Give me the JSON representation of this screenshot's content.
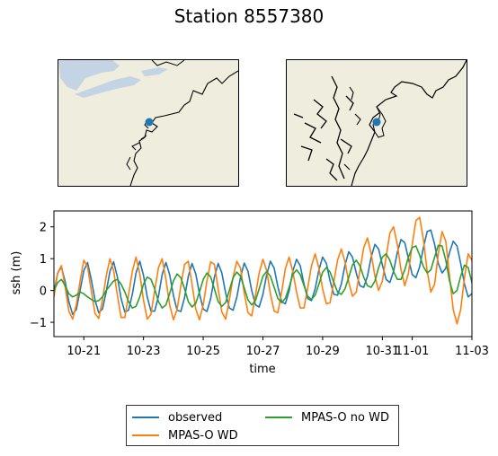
{
  "figure": {
    "title": "Station 8557380"
  },
  "maps": [
    {
      "name": "regional-map",
      "land_color": "#efedde",
      "water_color": "#c4d4e4",
      "station_color": "#1f77b4"
    },
    {
      "name": "local-map",
      "land_color": "#efedde",
      "station_color": "#1f77b4"
    }
  ],
  "chart_data": {
    "type": "line",
    "xlabel": "time",
    "ylabel": "ssh (m)",
    "xlim": [
      "10-20",
      "11-03"
    ],
    "ylim": [
      -1.45,
      2.5
    ],
    "x_ticks": [
      "10-21",
      "10-23",
      "10-25",
      "10-27",
      "10-29",
      "10-31",
      "11-01",
      "11-03"
    ],
    "y_ticks": [
      -1,
      0,
      1,
      2
    ],
    "grid": false,
    "legend_position": "bottom-center, outside",
    "x_step_hours": 3,
    "series": [
      {
        "name": "observed",
        "color": "#1f77b4",
        "values": [
          -0.05,
          0.55,
          0.74,
          0.28,
          -0.35,
          -0.75,
          -0.6,
          0.0,
          0.62,
          0.88,
          0.35,
          -0.3,
          -0.7,
          -0.58,
          -0.05,
          0.6,
          0.9,
          0.42,
          -0.25,
          -0.68,
          -0.62,
          -0.12,
          0.55,
          0.92,
          0.48,
          -0.2,
          -0.65,
          -0.65,
          -0.18,
          0.5,
          0.88,
          0.5,
          -0.15,
          -0.62,
          -0.66,
          -0.22,
          0.45,
          0.85,
          0.52,
          -0.1,
          -0.58,
          -0.66,
          -0.25,
          0.42,
          0.85,
          0.55,
          -0.08,
          -0.55,
          -0.62,
          -0.22,
          0.42,
          0.86,
          0.6,
          0.0,
          -0.45,
          -0.52,
          -0.12,
          0.5,
          0.92,
          0.7,
          0.12,
          -0.35,
          -0.42,
          -0.02,
          0.6,
          0.98,
          0.78,
          0.2,
          -0.25,
          -0.32,
          0.05,
          0.65,
          1.05,
          0.85,
          0.3,
          -0.12,
          -0.15,
          0.2,
          0.8,
          1.22,
          1.05,
          0.55,
          0.15,
          0.1,
          0.45,
          1.05,
          1.45,
          1.3,
          0.8,
          0.35,
          0.25,
          0.6,
          1.2,
          1.6,
          1.5,
          1.0,
          0.5,
          0.4,
          0.75,
          1.35,
          1.85,
          1.9,
          1.45,
          0.85,
          0.55,
          0.7,
          1.2,
          1.55,
          1.4,
          0.85,
          0.2,
          -0.2,
          -0.1,
          0.45,
          0.92,
          0.85,
          0.3,
          -0.25,
          -0.48,
          -0.2,
          0.45,
          0.88,
          0.7,
          0.12,
          -0.38,
          -0.55,
          -0.22,
          0.42,
          0.85,
          0.65,
          0.05,
          -0.45,
          -0.58,
          -0.25,
          0.4,
          0.82,
          0.62,
          0.05,
          -0.45,
          -0.55,
          -0.2,
          0.42,
          0.82,
          0.6,
          0.0,
          -0.5,
          -0.6,
          -0.25,
          0.38,
          0.78,
          0.55,
          -0.05,
          -0.55,
          -0.58,
          -0.18,
          0.4,
          0.8,
          0.58,
          -0.02,
          -0.48,
          -0.45,
          -0.12,
          0.45,
          0.78,
          0.5,
          -0.1,
          -0.4,
          -0.3,
          0.05
        ]
      },
      {
        "name": "MPAS-O WD",
        "color": "#ff7f0e",
        "values": [
          -0.2,
          0.55,
          0.78,
          0.1,
          -0.65,
          -0.9,
          -0.45,
          0.3,
          0.95,
          0.75,
          0.0,
          -0.72,
          -0.88,
          -0.3,
          0.45,
          1.0,
          0.62,
          -0.15,
          -0.85,
          -0.85,
          -0.15,
          0.6,
          1.05,
          0.52,
          -0.3,
          -0.9,
          -0.75,
          0.0,
          0.72,
          1.0,
          0.35,
          -0.45,
          -0.92,
          -0.6,
          0.15,
          0.82,
          0.92,
          0.2,
          -0.58,
          -0.92,
          -0.45,
          0.3,
          0.9,
          0.82,
          0.05,
          -0.68,
          -0.9,
          -0.3,
          0.42,
          0.92,
          0.7,
          -0.08,
          -0.7,
          -0.8,
          -0.15,
          0.55,
          0.98,
          0.62,
          -0.1,
          -0.65,
          -0.7,
          -0.05,
          0.68,
          1.05,
          0.6,
          -0.05,
          -0.55,
          -0.55,
          0.08,
          0.78,
          1.15,
          0.7,
          0.05,
          -0.42,
          -0.38,
          0.28,
          0.95,
          1.3,
          0.9,
          0.25,
          -0.18,
          -0.05,
          0.62,
          1.35,
          1.65,
          1.15,
          0.45,
          0.0,
          0.3,
          1.05,
          1.8,
          2.0,
          1.45,
          0.65,
          0.15,
          0.55,
          1.45,
          2.2,
          2.3,
          1.6,
          0.6,
          -0.05,
          0.2,
          1.15,
          1.85,
          1.55,
          0.45,
          -0.6,
          -1.05,
          -0.6,
          0.4,
          1.15,
          0.95,
          0.05,
          -0.85,
          -1.2,
          -0.65,
          0.35,
          1.05,
          0.85,
          -0.05,
          -0.9,
          -1.1,
          -0.5,
          0.5,
          1.05,
          0.72,
          -0.15,
          -0.95,
          -1.0,
          -0.35,
          0.55,
          1.0,
          0.6,
          -0.25,
          -0.95,
          -0.95,
          -0.25,
          0.62,
          1.0,
          0.5,
          -0.35,
          -0.98,
          -0.88,
          -0.12,
          0.7,
          0.95,
          0.38,
          -0.45,
          -0.98,
          -0.75,
          0.0,
          0.75,
          0.9,
          0.25,
          -0.55,
          -0.95,
          -0.62,
          0.12,
          0.78,
          0.8,
          0.1,
          -0.65,
          -0.9,
          -0.5,
          0.2
        ]
      },
      {
        "name": "MPAS-O no WD",
        "color": "#2ca02c",
        "values": [
          0.0,
          0.25,
          0.35,
          0.15,
          -0.1,
          -0.2,
          -0.15,
          -0.05,
          -0.1,
          -0.2,
          -0.28,
          -0.35,
          -0.32,
          -0.2,
          0.0,
          0.15,
          0.3,
          0.35,
          0.2,
          -0.05,
          -0.35,
          -0.55,
          -0.5,
          -0.2,
          0.2,
          0.42,
          0.35,
          0.05,
          -0.35,
          -0.55,
          -0.45,
          -0.1,
          0.3,
          0.52,
          0.4,
          0.05,
          -0.35,
          -0.52,
          -0.4,
          -0.05,
          0.35,
          0.55,
          0.42,
          0.05,
          -0.35,
          -0.5,
          -0.38,
          0.0,
          0.4,
          0.58,
          0.45,
          0.08,
          -0.3,
          -0.45,
          -0.32,
          0.05,
          0.45,
          0.6,
          0.45,
          0.1,
          -0.25,
          -0.38,
          -0.25,
          0.1,
          0.5,
          0.65,
          0.5,
          0.15,
          -0.18,
          -0.28,
          -0.15,
          0.2,
          0.58,
          0.72,
          0.58,
          0.25,
          -0.05,
          -0.12,
          0.05,
          0.42,
          0.8,
          0.95,
          0.78,
          0.42,
          0.15,
          0.1,
          0.3,
          0.72,
          1.05,
          1.15,
          0.95,
          0.6,
          0.35,
          0.35,
          0.65,
          1.05,
          1.35,
          1.4,
          1.1,
          0.75,
          0.55,
          0.65,
          1.05,
          1.42,
          1.4,
          0.95,
          0.3,
          -0.1,
          0.0,
          0.45,
          0.8,
          0.72,
          0.25,
          -0.3,
          -0.5,
          -0.3,
          0.15,
          0.5,
          0.45,
          0.05,
          -0.4,
          -0.55,
          -0.35,
          0.1,
          0.45,
          0.42,
          0.02,
          -0.42,
          -0.55,
          -0.32,
          0.12,
          0.45,
          0.4,
          0.0,
          -0.42,
          -0.55,
          -0.3,
          0.12,
          0.45,
          0.38,
          -0.02,
          -0.42,
          -0.52,
          -0.28,
          0.15,
          0.45,
          0.35,
          -0.05,
          -0.45,
          -0.52,
          -0.25,
          0.18,
          0.45,
          0.32,
          -0.08,
          -0.45,
          -0.5,
          -0.22,
          0.2,
          0.42,
          0.28,
          -0.1,
          -0.42,
          -0.3,
          -0.05
        ]
      }
    ]
  }
}
